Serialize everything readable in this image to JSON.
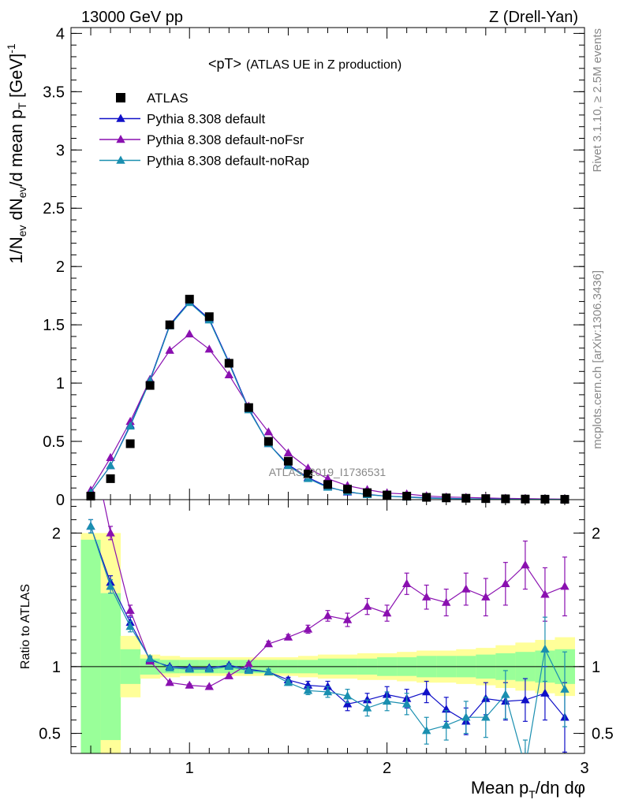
{
  "header": {
    "left": "13000 GeV pp",
    "right": "Z (Drell-Yan)"
  },
  "side": {
    "rivet": "Rivet 3.1.10, ≥ 2.5M events",
    "mcplots": "mcplots.cern.ch [arXiv:1306.3436]"
  },
  "watermark": "ATLAS_2019_I1736531",
  "chart_data": [
    {
      "type": "scatter",
      "title": "<pT> (ATLAS UE in Z production)",
      "title_main": "<pT>",
      "title_note": "(ATLAS UE in Z production)",
      "ylabel": "1/N_ev dN_ev/d mean p_T [GeV]^-1",
      "ylabel_parts": {
        "a": "1/N",
        "a_sub": "ev",
        "b": " dN",
        "b_sub": "ev",
        "c": "/d mean p",
        "c_sub": "T",
        "d": " [GeV]",
        "d_sup": "-1"
      },
      "xlim": [
        0.4,
        3.0
      ],
      "ylim": [
        0,
        4.05
      ],
      "yticks": [
        "0",
        "0.5",
        "1",
        "1.5",
        "2",
        "2.5",
        "3",
        "3.5",
        "4"
      ],
      "legend_position": "top-left",
      "x": [
        0.5,
        0.6,
        0.7,
        0.8,
        0.9,
        1.0,
        1.1,
        1.2,
        1.3,
        1.4,
        1.5,
        1.6,
        1.7,
        1.8,
        1.9,
        2.0,
        2.1,
        2.2,
        2.3,
        2.4,
        2.5,
        2.6,
        2.7,
        2.8,
        2.9
      ],
      "series": [
        {
          "name": "ATLAS",
          "color": "#000000",
          "marker": "square",
          "values": [
            0.03,
            0.18,
            0.48,
            0.98,
            1.5,
            1.72,
            1.57,
            1.17,
            0.79,
            0.5,
            0.33,
            0.22,
            0.13,
            0.09,
            0.06,
            0.04,
            0.03,
            0.02,
            0.015,
            0.012,
            0.009,
            0.007,
            0.005,
            0.004,
            0.003
          ]
        },
        {
          "name": "Pythia 8.308 default",
          "color": "#1010c8",
          "marker": "triangle",
          "values": [
            0.06,
            0.29,
            0.64,
            1.03,
            1.5,
            1.7,
            1.55,
            1.18,
            0.78,
            0.48,
            0.3,
            0.19,
            0.11,
            0.065,
            0.045,
            0.03,
            0.023,
            0.016,
            0.011,
            0.008,
            0.006,
            0.005,
            0.004,
            0.003,
            0.002
          ]
        },
        {
          "name": "Pythia 8.308 default-noFsr",
          "color": "#8a10b0",
          "marker": "triangle",
          "values": [
            0.08,
            0.36,
            0.67,
            1.03,
            1.28,
            1.42,
            1.29,
            1.07,
            0.8,
            0.58,
            0.4,
            0.27,
            0.18,
            0.12,
            0.085,
            0.057,
            0.048,
            0.032,
            0.022,
            0.019,
            0.014,
            0.011,
            0.009,
            0.006,
            0.005
          ]
        },
        {
          "name": "Pythia 8.308 default-noRap",
          "color": "#1a8fb0",
          "marker": "triangle",
          "values": [
            0.06,
            0.29,
            0.63,
            1.02,
            1.49,
            1.69,
            1.54,
            1.17,
            0.77,
            0.48,
            0.29,
            0.18,
            0.105,
            0.07,
            0.042,
            0.03,
            0.021,
            0.012,
            0.009,
            0.007,
            0.005,
            0.004,
            0.003,
            0.003,
            0.002
          ]
        }
      ]
    },
    {
      "type": "line",
      "title": "",
      "xlabel": "Mean p_T/dη dφ",
      "xlabel_parts": {
        "a": "Mean p",
        "a_sub": "T",
        "b": "/dη dφ"
      },
      "ylabel": "Ratio to ATLAS",
      "xlim": [
        0.4,
        3.0
      ],
      "ylim": [
        0.35,
        2.25
      ],
      "xticks": [
        "1",
        "2",
        "3"
      ],
      "yticks": [
        "0.5",
        "1",
        "2"
      ],
      "x": [
        0.5,
        0.6,
        0.7,
        0.8,
        0.9,
        1.0,
        1.1,
        1.2,
        1.3,
        1.4,
        1.5,
        1.6,
        1.7,
        1.8,
        1.9,
        2.0,
        2.1,
        2.2,
        2.3,
        2.4,
        2.5,
        2.6,
        2.7,
        2.8,
        2.9
      ],
      "band_stat": [
        0.95,
        0.55,
        0.13,
        0.06,
        0.05,
        0.05,
        0.05,
        0.05,
        0.05,
        0.05,
        0.05,
        0.05,
        0.06,
        0.06,
        0.06,
        0.07,
        0.07,
        0.08,
        0.08,
        0.08,
        0.09,
        0.1,
        0.11,
        0.12,
        0.13
      ],
      "band_total": [
        1.0,
        1.0,
        0.23,
        0.09,
        0.08,
        0.07,
        0.07,
        0.07,
        0.07,
        0.07,
        0.07,
        0.08,
        0.09,
        0.09,
        0.1,
        0.1,
        0.11,
        0.12,
        0.12,
        0.13,
        0.14,
        0.16,
        0.18,
        0.2,
        0.22
      ],
      "series": [
        {
          "name": "Pythia 8.308 default",
          "color": "#1010c8",
          "values": [
            2.05,
            1.63,
            1.33,
            1.05,
            1.0,
            0.99,
            0.99,
            1.01,
            0.98,
            0.96,
            0.9,
            0.86,
            0.85,
            0.72,
            0.75,
            0.79,
            0.76,
            0.81,
            0.68,
            0.59,
            0.76,
            0.74,
            0.75,
            0.8,
            0.62
          ],
          "errors": [
            0.05,
            0.05,
            0.04,
            0.02,
            0.01,
            0.01,
            0.01,
            0.01,
            0.01,
            0.02,
            0.02,
            0.03,
            0.04,
            0.05,
            0.05,
            0.06,
            0.07,
            0.08,
            0.09,
            0.1,
            0.12,
            0.14,
            0.16,
            0.2,
            0.26
          ]
        },
        {
          "name": "Pythia 8.308 default-noFsr",
          "color": "#8a10b0",
          "values": [
            2.7,
            2.0,
            1.42,
            1.04,
            0.88,
            0.86,
            0.85,
            0.93,
            1.02,
            1.17,
            1.22,
            1.28,
            1.38,
            1.35,
            1.45,
            1.4,
            1.62,
            1.52,
            1.48,
            1.58,
            1.52,
            1.62,
            1.76,
            1.54,
            1.6
          ],
          "errors": [
            0.05,
            0.05,
            0.04,
            0.02,
            0.01,
            0.01,
            0.01,
            0.01,
            0.01,
            0.02,
            0.02,
            0.03,
            0.04,
            0.05,
            0.06,
            0.06,
            0.08,
            0.09,
            0.1,
            0.12,
            0.14,
            0.16,
            0.18,
            0.2,
            0.22
          ]
        },
        {
          "name": "Pythia 8.308 default-noRap",
          "color": "#1a8fb0",
          "values": [
            2.05,
            1.6,
            1.3,
            1.06,
            0.99,
            0.98,
            0.98,
            1.0,
            0.97,
            0.96,
            0.88,
            0.82,
            0.81,
            0.78,
            0.69,
            0.74,
            0.72,
            0.52,
            0.56,
            0.62,
            0.62,
            0.79,
            0.25,
            1.13,
            0.83
          ],
          "errors": [
            0.05,
            0.05,
            0.04,
            0.02,
            0.01,
            0.01,
            0.01,
            0.01,
            0.01,
            0.02,
            0.02,
            0.03,
            0.04,
            0.05,
            0.06,
            0.07,
            0.08,
            0.1,
            0.11,
            0.12,
            0.15,
            0.18,
            0.2,
            0.24,
            0.28
          ]
        }
      ]
    }
  ]
}
